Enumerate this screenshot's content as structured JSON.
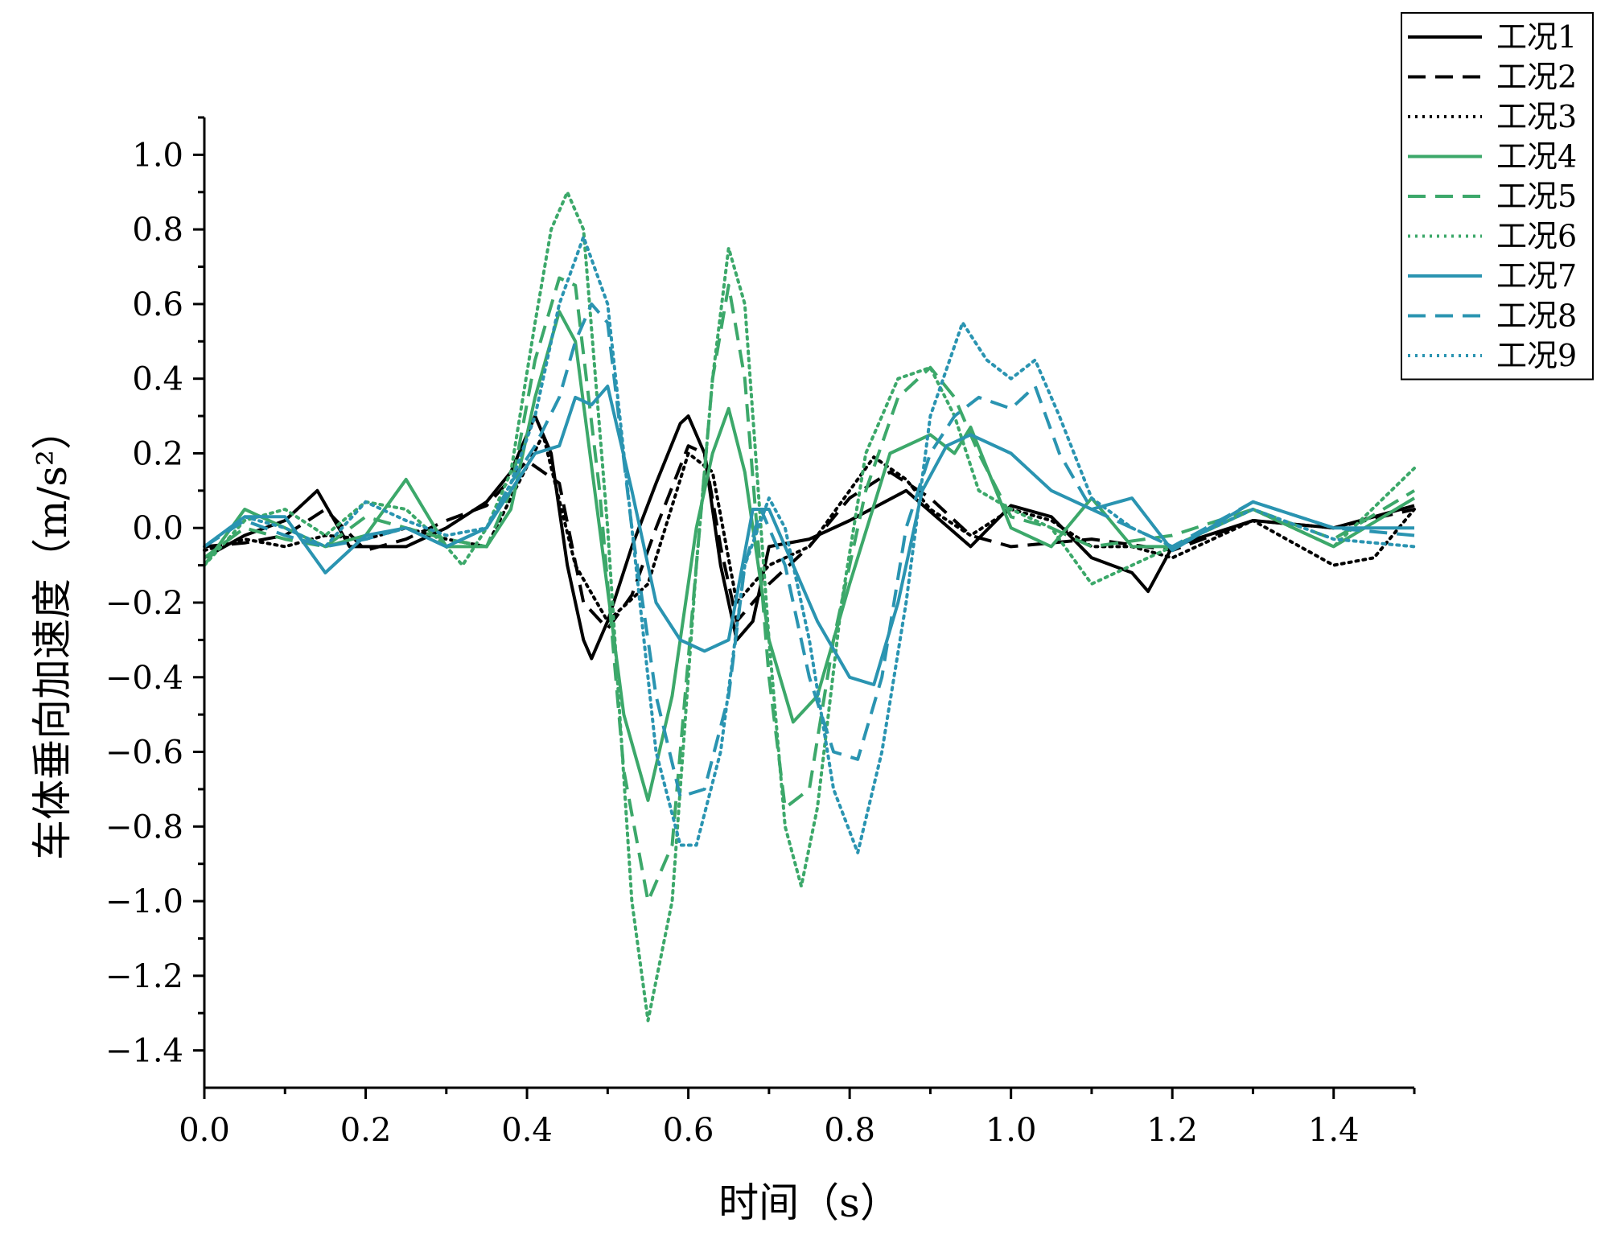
{
  "chart_data": {
    "type": "line",
    "xlabel": "时间（s）",
    "ylabel": "车体垂向加速度（m/s²）",
    "xlim": [
      0,
      1.5
    ],
    "ylim": [
      -1.5,
      1.1
    ],
    "x_ticks": [
      "0.0",
      "0.2",
      "0.4",
      "0.6",
      "0.8",
      "1.0",
      "1.2",
      "1.4"
    ],
    "y_ticks": [
      "1.0",
      "0.8",
      "0.6",
      "0.4",
      "0.2",
      "0.0",
      "−0.2",
      "−0.4",
      "−0.6",
      "−0.8",
      "−1.0",
      "−1.2",
      "−1.4"
    ],
    "grid": false,
    "legend_position": "top-right outside",
    "series": [
      {
        "name": "工况1",
        "color": "#000000",
        "dash": "solid",
        "x": [
          0,
          0.05,
          0.1,
          0.14,
          0.18,
          0.25,
          0.3,
          0.35,
          0.38,
          0.41,
          0.43,
          0.45,
          0.47,
          0.48,
          0.5,
          0.53,
          0.56,
          0.59,
          0.6,
          0.62,
          0.64,
          0.66,
          0.68,
          0.7,
          0.75,
          0.8,
          0.87,
          0.95,
          1.0,
          1.05,
          1.1,
          1.15,
          1.17,
          1.2,
          1.3,
          1.4,
          1.5
        ],
        "y": [
          -0.08,
          -0.02,
          0.02,
          0.1,
          -0.05,
          -0.05,
          0.0,
          0.07,
          0.15,
          0.3,
          0.2,
          -0.1,
          -0.3,
          -0.35,
          -0.25,
          -0.05,
          0.12,
          0.28,
          0.3,
          0.2,
          -0.1,
          -0.3,
          -0.25,
          -0.05,
          -0.03,
          0.02,
          0.1,
          -0.05,
          0.06,
          0.03,
          -0.08,
          -0.12,
          -0.17,
          -0.05,
          0.02,
          0.0,
          0.06
        ]
      },
      {
        "name": "工况2",
        "color": "#000000",
        "dash": "long",
        "x": [
          0,
          0.05,
          0.1,
          0.15,
          0.2,
          0.25,
          0.3,
          0.35,
          0.4,
          0.44,
          0.47,
          0.5,
          0.53,
          0.56,
          0.6,
          0.62,
          0.64,
          0.66,
          0.7,
          0.75,
          0.8,
          0.85,
          0.9,
          0.95,
          1.0,
          1.1,
          1.2,
          1.3,
          1.4,
          1.5
        ],
        "y": [
          -0.05,
          -0.04,
          -0.02,
          0.05,
          -0.06,
          -0.03,
          0.02,
          0.06,
          0.18,
          0.12,
          -0.2,
          -0.27,
          -0.18,
          0.0,
          0.22,
          0.2,
          -0.05,
          -0.25,
          -0.15,
          -0.05,
          0.08,
          0.15,
          0.08,
          -0.02,
          -0.05,
          -0.03,
          -0.06,
          0.02,
          0.0,
          0.05
        ]
      },
      {
        "name": "工况3",
        "color": "#000000",
        "dash": "dot",
        "x": [
          0,
          0.05,
          0.1,
          0.15,
          0.2,
          0.25,
          0.3,
          0.35,
          0.38,
          0.42,
          0.46,
          0.5,
          0.55,
          0.6,
          0.63,
          0.66,
          0.7,
          0.75,
          0.8,
          0.83,
          0.87,
          0.9,
          0.95,
          1.0,
          1.05,
          1.1,
          1.15,
          1.2,
          1.3,
          1.4,
          1.45,
          1.5
        ],
        "y": [
          -0.06,
          -0.03,
          -0.05,
          -0.02,
          -0.03,
          0.0,
          -0.03,
          -0.05,
          0.08,
          0.25,
          -0.1,
          -0.25,
          -0.15,
          0.2,
          0.15,
          -0.2,
          -0.1,
          -0.05,
          0.1,
          0.19,
          0.13,
          0.05,
          -0.02,
          0.05,
          0.02,
          -0.05,
          -0.05,
          -0.08,
          0.02,
          -0.1,
          -0.08,
          0.05
        ]
      },
      {
        "name": "工况4",
        "color": "#3ca86a",
        "dash": "solid",
        "x": [
          0,
          0.05,
          0.1,
          0.15,
          0.2,
          0.25,
          0.3,
          0.35,
          0.38,
          0.41,
          0.44,
          0.46,
          0.49,
          0.52,
          0.55,
          0.58,
          0.61,
          0.63,
          0.65,
          0.67,
          0.7,
          0.73,
          0.76,
          0.8,
          0.85,
          0.9,
          0.93,
          0.95,
          1.0,
          1.05,
          1.1,
          1.15,
          1.2,
          1.3,
          1.4,
          1.5
        ],
        "y": [
          -0.1,
          0.05,
          0.0,
          -0.05,
          -0.02,
          0.13,
          -0.05,
          -0.05,
          0.05,
          0.35,
          0.58,
          0.5,
          0.0,
          -0.5,
          -0.73,
          -0.45,
          0.0,
          0.2,
          0.32,
          0.15,
          -0.3,
          -0.52,
          -0.45,
          -0.15,
          0.2,
          0.25,
          0.2,
          0.27,
          0.0,
          -0.05,
          0.08,
          -0.05,
          -0.05,
          0.05,
          -0.05,
          0.08
        ]
      },
      {
        "name": "工况5",
        "color": "#3ca86a",
        "dash": "long",
        "x": [
          0,
          0.05,
          0.1,
          0.15,
          0.2,
          0.25,
          0.3,
          0.35,
          0.38,
          0.41,
          0.44,
          0.46,
          0.49,
          0.52,
          0.55,
          0.58,
          0.61,
          0.63,
          0.65,
          0.67,
          0.7,
          0.72,
          0.75,
          0.78,
          0.82,
          0.86,
          0.9,
          0.93,
          0.96,
          1.0,
          1.05,
          1.1,
          1.2,
          1.3,
          1.4,
          1.5
        ],
        "y": [
          -0.08,
          0.0,
          -0.03,
          -0.05,
          0.03,
          0.0,
          -0.03,
          -0.05,
          0.1,
          0.45,
          0.67,
          0.65,
          0.1,
          -0.65,
          -1.0,
          -0.85,
          -0.1,
          0.4,
          0.65,
          0.4,
          -0.4,
          -0.75,
          -0.7,
          -0.3,
          0.1,
          0.35,
          0.43,
          0.35,
          0.2,
          0.03,
          0.0,
          -0.05,
          -0.02,
          0.05,
          -0.03,
          0.1
        ]
      },
      {
        "name": "工况6",
        "color": "#3ca86a",
        "dash": "dot",
        "x": [
          0,
          0.05,
          0.1,
          0.15,
          0.2,
          0.25,
          0.3,
          0.32,
          0.35,
          0.38,
          0.41,
          0.43,
          0.45,
          0.47,
          0.5,
          0.53,
          0.55,
          0.58,
          0.61,
          0.63,
          0.65,
          0.67,
          0.7,
          0.72,
          0.74,
          0.76,
          0.79,
          0.82,
          0.86,
          0.9,
          0.93,
          0.96,
          1.0,
          1.05,
          1.1,
          1.2,
          1.3,
          1.4,
          1.5
        ],
        "y": [
          -0.1,
          0.02,
          0.05,
          -0.02,
          0.07,
          0.05,
          -0.05,
          -0.1,
          0.0,
          0.15,
          0.55,
          0.8,
          0.9,
          0.8,
          0.0,
          -1.0,
          -1.32,
          -1.0,
          -0.1,
          0.4,
          0.75,
          0.6,
          -0.3,
          -0.8,
          -0.96,
          -0.75,
          -0.2,
          0.2,
          0.4,
          0.43,
          0.3,
          0.1,
          0.05,
          0.0,
          -0.15,
          -0.05,
          0.05,
          -0.05,
          0.16
        ]
      },
      {
        "name": "工况7",
        "color": "#2a94b1",
        "dash": "solid",
        "x": [
          0,
          0.05,
          0.1,
          0.15,
          0.2,
          0.25,
          0.3,
          0.35,
          0.38,
          0.41,
          0.44,
          0.46,
          0.48,
          0.5,
          0.53,
          0.56,
          0.59,
          0.62,
          0.65,
          0.68,
          0.7,
          0.73,
          0.76,
          0.8,
          0.83,
          0.86,
          0.89,
          0.92,
          0.95,
          1.0,
          1.05,
          1.1,
          1.15,
          1.2,
          1.3,
          1.4,
          1.5
        ],
        "y": [
          -0.05,
          0.03,
          0.03,
          -0.12,
          -0.02,
          0.0,
          -0.05,
          0.0,
          0.1,
          0.2,
          0.22,
          0.35,
          0.33,
          0.38,
          0.1,
          -0.2,
          -0.3,
          -0.33,
          -0.3,
          0.05,
          0.05,
          -0.1,
          -0.25,
          -0.4,
          -0.42,
          -0.2,
          0.1,
          0.22,
          0.25,
          0.2,
          0.1,
          0.05,
          0.08,
          -0.06,
          0.07,
          0.0,
          0.0
        ]
      },
      {
        "name": "工况8",
        "color": "#2a94b1",
        "dash": "long",
        "x": [
          0,
          0.05,
          0.1,
          0.15,
          0.2,
          0.25,
          0.3,
          0.35,
          0.38,
          0.41,
          0.44,
          0.46,
          0.48,
          0.5,
          0.53,
          0.56,
          0.59,
          0.62,
          0.65,
          0.67,
          0.69,
          0.72,
          0.75,
          0.78,
          0.81,
          0.84,
          0.87,
          0.9,
          0.93,
          0.96,
          1.0,
          1.03,
          1.06,
          1.1,
          1.2,
          1.3,
          1.4,
          1.5
        ],
        "y": [
          -0.05,
          0.02,
          -0.02,
          -0.05,
          -0.03,
          0.0,
          -0.05,
          0.0,
          0.12,
          0.22,
          0.35,
          0.5,
          0.6,
          0.55,
          0.0,
          -0.45,
          -0.72,
          -0.7,
          -0.45,
          -0.1,
          0.05,
          -0.1,
          -0.4,
          -0.6,
          -0.62,
          -0.4,
          0.0,
          0.2,
          0.3,
          0.35,
          0.32,
          0.38,
          0.2,
          0.05,
          -0.05,
          0.07,
          0.0,
          -0.02
        ]
      },
      {
        "name": "工况9",
        "color": "#2a94b1",
        "dash": "dot",
        "x": [
          0,
          0.05,
          0.1,
          0.15,
          0.2,
          0.25,
          0.3,
          0.35,
          0.38,
          0.41,
          0.44,
          0.47,
          0.5,
          0.53,
          0.56,
          0.59,
          0.61,
          0.64,
          0.67,
          0.7,
          0.72,
          0.75,
          0.78,
          0.81,
          0.84,
          0.87,
          0.9,
          0.94,
          0.97,
          1.0,
          1.03,
          1.06,
          1.1,
          1.15,
          1.2,
          1.3,
          1.4,
          1.5
        ],
        "y": [
          -0.05,
          0.03,
          0.0,
          -0.05,
          0.07,
          0.02,
          -0.02,
          0.0,
          0.12,
          0.3,
          0.6,
          0.78,
          0.6,
          0.0,
          -0.6,
          -0.85,
          -0.85,
          -0.6,
          -0.1,
          0.08,
          0.0,
          -0.3,
          -0.7,
          -0.87,
          -0.6,
          -0.2,
          0.3,
          0.55,
          0.45,
          0.4,
          0.45,
          0.3,
          0.08,
          0.0,
          -0.05,
          0.05,
          -0.03,
          -0.05
        ]
      }
    ]
  }
}
